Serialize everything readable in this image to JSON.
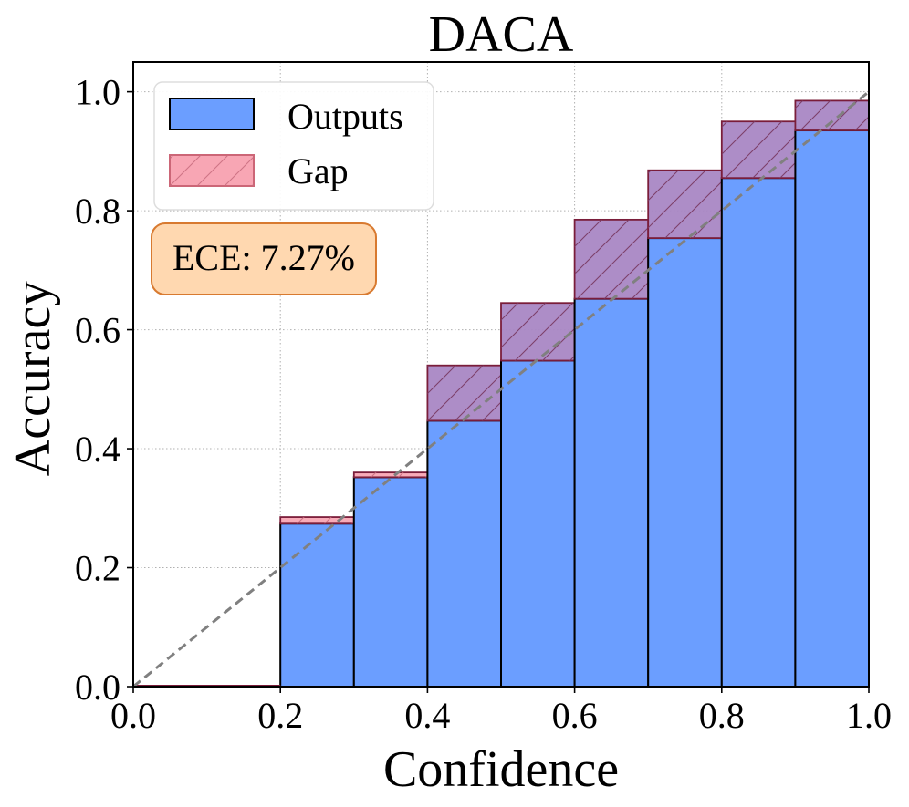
{
  "chart_data": {
    "type": "bar",
    "title": "DACA",
    "xlabel": "Confidence",
    "ylabel": "Accuracy",
    "xlim": [
      0,
      1
    ],
    "ylim": [
      0,
      1.05
    ],
    "x_ticks": [
      "0.0",
      "0.2",
      "0.4",
      "0.6",
      "0.8",
      "1.0"
    ],
    "y_ticks": [
      "0.0",
      "0.2",
      "0.4",
      "0.6",
      "0.8",
      "1.0"
    ],
    "grid": true,
    "bin_edges": [
      0.0,
      0.1,
      0.2,
      0.3,
      0.4,
      0.5,
      0.6,
      0.7,
      0.8,
      0.9,
      1.0
    ],
    "series": [
      {
        "name": "Outputs",
        "values": [
          0.0,
          0.0,
          0.274,
          0.352,
          0.447,
          0.548,
          0.652,
          0.754,
          0.855,
          0.935
        ]
      },
      {
        "name": "Gap",
        "values": [
          0.0,
          0.0,
          0.285,
          0.36,
          0.54,
          0.645,
          0.785,
          0.868,
          0.95,
          0.985
        ]
      }
    ],
    "diagonal": {
      "from": [
        0,
        0
      ],
      "to": [
        1,
        1
      ],
      "style": "dashed",
      "color": "#808080"
    },
    "legend": {
      "placement": "top-left",
      "entries": [
        "Outputs",
        "Gap"
      ]
    },
    "annotation": {
      "text": "ECE: 7.27%",
      "placement": "upper-left"
    },
    "colors": {
      "outputs_fill": "#6b9eff",
      "outputs_edge": "#000000",
      "gap_fill": "#f8a6b4",
      "gap_edge": "#cc6677",
      "overlap_fill": "#a987c4",
      "overlap_edge": "#7a1d3a",
      "annotation_fill": "#ffd8b0",
      "annotation_edge": "#d87a30",
      "diagonal": "#808080"
    }
  }
}
